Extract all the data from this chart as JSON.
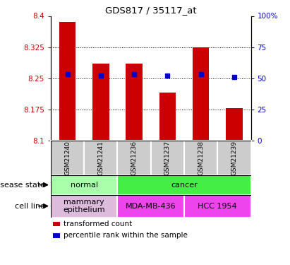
{
  "title": "GDS817 / 35117_at",
  "samples": [
    "GSM21240",
    "GSM21241",
    "GSM21236",
    "GSM21237",
    "GSM21238",
    "GSM21239"
  ],
  "bar_values": [
    8.385,
    8.285,
    8.285,
    8.215,
    8.325,
    8.178
  ],
  "percentile_values": [
    53,
    52,
    53,
    52,
    53,
    51
  ],
  "ylim_left": [
    8.1,
    8.4
  ],
  "ylim_right": [
    0,
    100
  ],
  "yticks_left": [
    8.1,
    8.175,
    8.25,
    8.325,
    8.4
  ],
  "ytick_labels_left": [
    "8.1",
    "8.175",
    "8.25",
    "8.325",
    "8.4"
  ],
  "yticks_right": [
    0,
    25,
    50,
    75,
    100
  ],
  "ytick_labels_right": [
    "0",
    "25",
    "50",
    "75",
    "100%"
  ],
  "bar_color": "#cc0000",
  "dot_color": "#0000cc",
  "bar_base": 8.1,
  "disease_state_groups": [
    {
      "label": "normal",
      "start": 0,
      "end": 2,
      "color": "#aaffaa"
    },
    {
      "label": "cancer",
      "start": 2,
      "end": 6,
      "color": "#44ee44"
    }
  ],
  "cell_line_groups": [
    {
      "label": "mammary\nepithelium",
      "start": 0,
      "end": 2,
      "color": "#ddbbdd"
    },
    {
      "label": "MDA-MB-436",
      "start": 2,
      "end": 4,
      "color": "#ee44ee"
    },
    {
      "label": "HCC 1954",
      "start": 4,
      "end": 6,
      "color": "#ee44ee"
    }
  ],
  "legend_items": [
    {
      "label": "transformed count",
      "color": "#cc0000"
    },
    {
      "label": "percentile rank within the sample",
      "color": "#0000cc"
    }
  ],
  "left_color": "#cc0000",
  "right_color": "#0000cc",
  "sample_bg": "#cccccc",
  "annotation_disease": "disease state",
  "annotation_cell": "cell line"
}
